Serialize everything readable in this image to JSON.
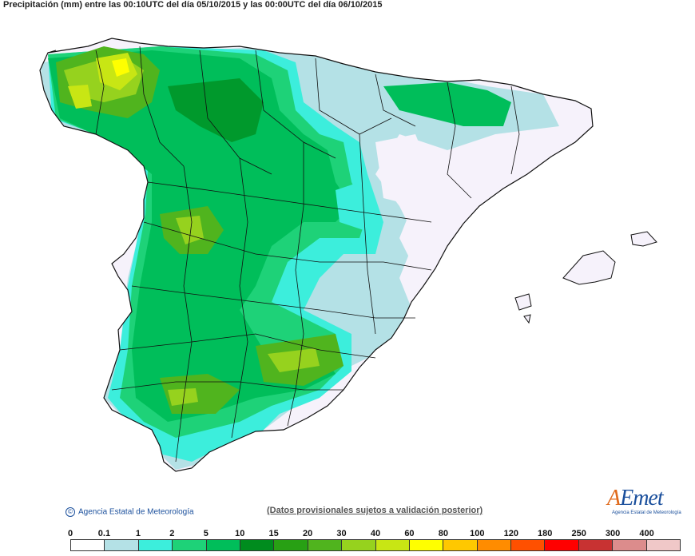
{
  "title": "Precipitación (mm) entre las 00:10UTC del día 05/10/2015 y las 00:00UTC del día 06/10/2015",
  "footer": {
    "copyright": "Agencia Estatal de Meteorología",
    "disclaimer": "(Datos provisionales sujetos a validación posterior)"
  },
  "logo": {
    "wordmark_a": "A",
    "wordmark_rest": "Emet",
    "tagline": "Agencia Estatal de Meteorología"
  },
  "legend": {
    "labels": [
      "0",
      "0.1",
      "1",
      "2",
      "5",
      "10",
      "15",
      "20",
      "30",
      "40",
      "60",
      "80",
      "100",
      "120",
      "180",
      "250",
      "300",
      "400"
    ],
    "colors": [
      "#ffffff",
      "#b4e1e6",
      "#3ceedc",
      "#1ed278",
      "#00be5a",
      "#008c1e",
      "#28a014",
      "#50b41e",
      "#96d21e",
      "#c8e614",
      "#ffff00",
      "#ffc800",
      "#ff8c00",
      "#ff5000",
      "#ff0000",
      "#c83232",
      "#dc8c8c",
      "#f0c8c8"
    ]
  }
}
